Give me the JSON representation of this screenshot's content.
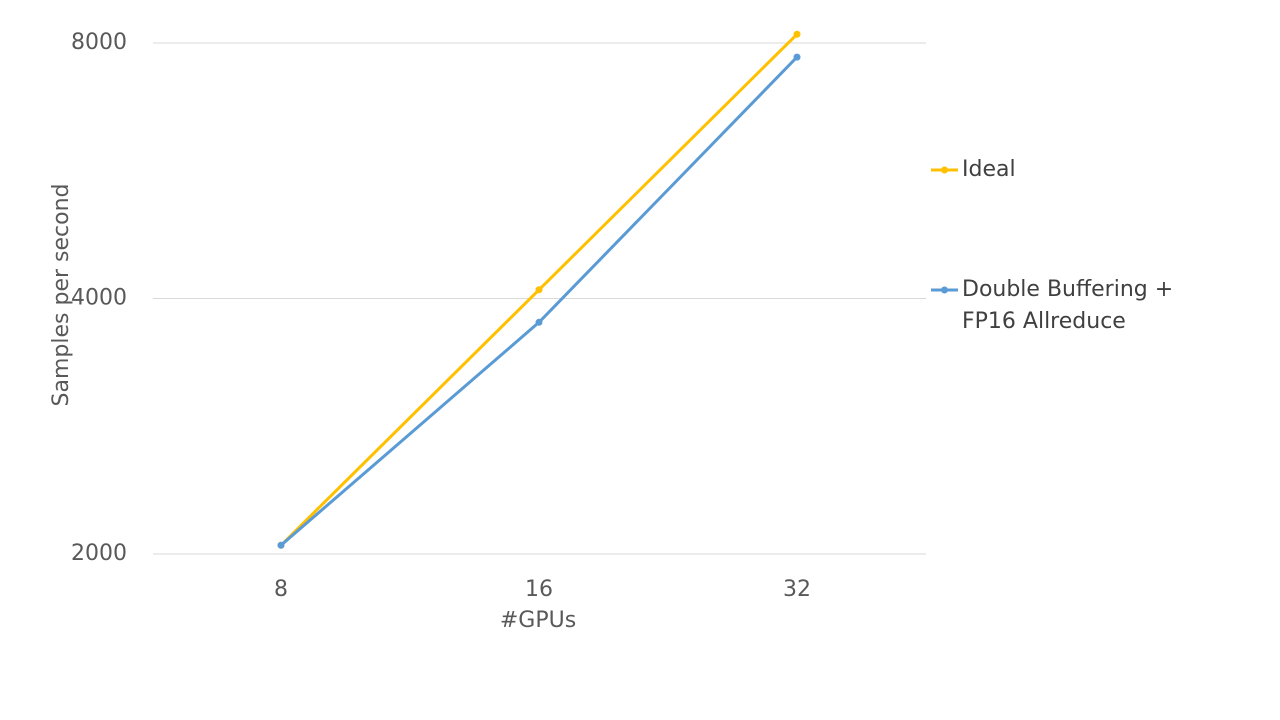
{
  "chart_data": {
    "type": "line",
    "title": "",
    "xlabel": "#GPUs",
    "ylabel": "Samples per second",
    "x": [
      "8",
      "16",
      "32"
    ],
    "yscale": "log2",
    "ylim": [
      2000,
      8000
    ],
    "yticks": [
      "2000",
      "4000",
      "8000"
    ],
    "grid": true,
    "legend_position": "right",
    "series": [
      {
        "name": "Ideal",
        "name_lines": [
          "Ideal"
        ],
        "color": "#FFC000",
        "values": [
          2048,
          4096,
          8192
        ]
      },
      {
        "name": "Double Buffering + FP16 Allreduce",
        "name_lines": [
          "Double Buffering +",
          "FP16 Allreduce"
        ],
        "color": "#5B9BD5",
        "values": [
          2048,
          3750,
          7700
        ]
      }
    ]
  }
}
